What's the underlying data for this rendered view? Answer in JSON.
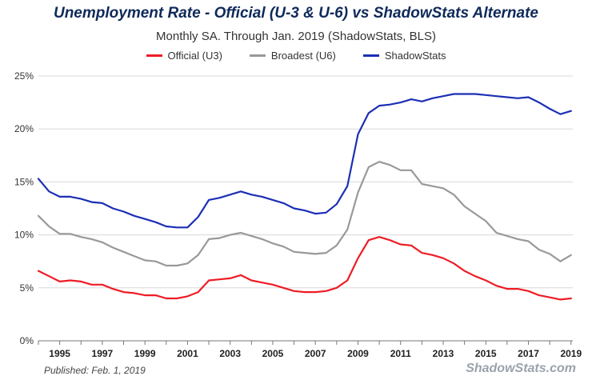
{
  "header": {
    "title": "Unemployment Rate - Official (U-3 & U-6) vs ShadowStats Alternate",
    "subtitle": "Monthly SA. Through Jan. 2019  (ShadowStats, BLS)"
  },
  "footer": {
    "published": "Published: Feb. 1, 2019",
    "brand": "ShadowStats.com"
  },
  "chart_data": {
    "type": "line",
    "title": "Unemployment Rate - Official (U-3 & U-6) vs ShadowStats Alternate",
    "subtitle": "Monthly SA. Through Jan. 2019  (ShadowStats, BLS)",
    "xlim": [
      1994,
      2019.083
    ],
    "ylim": [
      0,
      25
    ],
    "xticks": [
      "1995",
      "1997",
      "1999",
      "2001",
      "2003",
      "2005",
      "2007",
      "2009",
      "2011",
      "2013",
      "2015",
      "2017",
      "2019"
    ],
    "yticks": [
      "0%",
      "5%",
      "10%",
      "15%",
      "20%",
      "25%"
    ],
    "grid": true,
    "legend": "top-center",
    "series": [
      {
        "name": "Official (U3)",
        "color": "#ee1c25",
        "x": [
          1994,
          1994.5,
          1995,
          1995.5,
          1996,
          1996.5,
          1997,
          1997.5,
          1998,
          1998.5,
          1999,
          1999.5,
          2000,
          2000.5,
          2001,
          2001.5,
          2002,
          2002.5,
          2003,
          2003.5,
          2004,
          2004.5,
          2005,
          2005.5,
          2006,
          2006.5,
          2007,
          2007.5,
          2008,
          2008.5,
          2009,
          2009.5,
          2010,
          2010.5,
          2011,
          2011.5,
          2012,
          2012.5,
          2013,
          2013.5,
          2014,
          2014.5,
          2015,
          2015.5,
          2016,
          2016.5,
          2017,
          2017.5,
          2018,
          2018.5,
          2019
        ],
        "values": [
          6.6,
          6.1,
          5.6,
          5.7,
          5.6,
          5.3,
          5.3,
          4.9,
          4.6,
          4.5,
          4.3,
          4.3,
          4.0,
          4.0,
          4.2,
          4.6,
          5.7,
          5.8,
          5.9,
          6.2,
          5.7,
          5.5,
          5.3,
          5.0,
          4.7,
          4.6,
          4.6,
          4.7,
          5.0,
          5.7,
          7.8,
          9.5,
          9.8,
          9.5,
          9.1,
          9.0,
          8.3,
          8.1,
          7.8,
          7.3,
          6.6,
          6.1,
          5.7,
          5.2,
          4.9,
          4.9,
          4.7,
          4.3,
          4.1,
          3.9,
          4.0
        ]
      },
      {
        "name": "Broadest (U6)",
        "color": "#999999",
        "x": [
          1994,
          1994.5,
          1995,
          1995.5,
          1996,
          1996.5,
          1997,
          1997.5,
          1998,
          1998.5,
          1999,
          1999.5,
          2000,
          2000.5,
          2001,
          2001.5,
          2002,
          2002.5,
          2003,
          2003.5,
          2004,
          2004.5,
          2005,
          2005.5,
          2006,
          2006.5,
          2007,
          2007.5,
          2008,
          2008.5,
          2009,
          2009.5,
          2010,
          2010.5,
          2011,
          2011.5,
          2012,
          2012.5,
          2013,
          2013.5,
          2014,
          2014.5,
          2015,
          2015.5,
          2016,
          2016.5,
          2017,
          2017.5,
          2018,
          2018.5,
          2019
        ],
        "values": [
          11.8,
          10.8,
          10.1,
          10.1,
          9.8,
          9.6,
          9.3,
          8.8,
          8.4,
          8.0,
          7.6,
          7.5,
          7.1,
          7.1,
          7.3,
          8.1,
          9.6,
          9.7,
          10.0,
          10.2,
          9.9,
          9.6,
          9.2,
          8.9,
          8.4,
          8.3,
          8.2,
          8.3,
          9.0,
          10.5,
          14.0,
          16.4,
          16.9,
          16.6,
          16.1,
          16.1,
          14.8,
          14.6,
          14.4,
          13.8,
          12.7,
          12.0,
          11.3,
          10.2,
          9.9,
          9.6,
          9.4,
          8.6,
          8.2,
          7.5,
          8.1
        ]
      },
      {
        "name": "ShadowStats",
        "color": "#1c2fb5",
        "x": [
          1994,
          1994.5,
          1995,
          1995.5,
          1996,
          1996.5,
          1997,
          1997.5,
          1998,
          1998.5,
          1999,
          1999.5,
          2000,
          2000.5,
          2001,
          2001.5,
          2002,
          2002.5,
          2003,
          2003.5,
          2004,
          2004.5,
          2005,
          2005.5,
          2006,
          2006.5,
          2007,
          2007.5,
          2008,
          2008.5,
          2009,
          2009.5,
          2010,
          2010.5,
          2011,
          2011.5,
          2012,
          2012.5,
          2013,
          2013.5,
          2014,
          2014.5,
          2015,
          2015.5,
          2016,
          2016.5,
          2017,
          2017.5,
          2018,
          2018.5,
          2019
        ],
        "values": [
          15.3,
          14.1,
          13.6,
          13.6,
          13.4,
          13.1,
          13.0,
          12.5,
          12.2,
          11.8,
          11.5,
          11.2,
          10.8,
          10.7,
          10.7,
          11.7,
          13.3,
          13.5,
          13.8,
          14.1,
          13.8,
          13.6,
          13.3,
          13.0,
          12.5,
          12.3,
          12.0,
          12.1,
          12.9,
          14.6,
          19.5,
          21.5,
          22.2,
          22.3,
          22.5,
          22.8,
          22.6,
          22.9,
          23.1,
          23.3,
          23.3,
          23.3,
          23.2,
          23.1,
          23.0,
          22.9,
          23.0,
          22.5,
          21.9,
          21.4,
          21.7
        ]
      }
    ]
  }
}
